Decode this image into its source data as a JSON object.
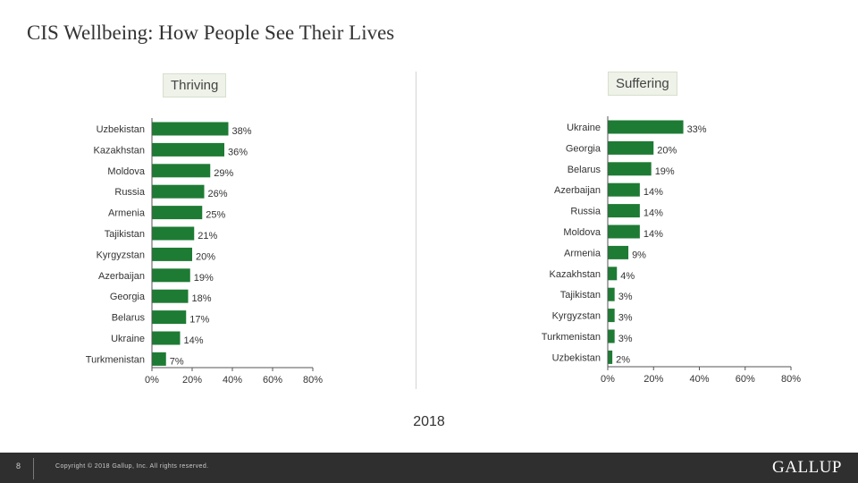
{
  "page": {
    "title": "CIS Wellbeing: How People See Their Lives",
    "year": "2018",
    "page_number": "8",
    "copyright": "Copyright © 2018 Gallup, Inc. All rights reserved.",
    "logo": "GALLUP",
    "accent_color": "#1e7b34"
  },
  "chart_data": [
    {
      "type": "bar",
      "orientation": "horizontal",
      "title": "Thriving",
      "categories": [
        "Uzbekistan",
        "Kazakhstan",
        "Moldova",
        "Russia",
        "Armenia",
        "Tajikistan",
        "Kyrgyzstan",
        "Azerbaijan",
        "Georgia",
        "Belarus",
        "Ukraine",
        "Turkmenistan"
      ],
      "values": [
        38,
        36,
        29,
        26,
        25,
        21,
        20,
        19,
        18,
        17,
        14,
        7
      ],
      "value_labels": [
        "38%",
        "36%",
        "29%",
        "26%",
        "25%",
        "21%",
        "20%",
        "19%",
        "18%",
        "17%",
        "14%",
        "7%"
      ],
      "xlim": [
        0,
        80
      ],
      "xticks": [
        "0%",
        "20%",
        "40%",
        "60%",
        "80%"
      ],
      "color": "#1e7b34"
    },
    {
      "type": "bar",
      "orientation": "horizontal",
      "title": "Suffering",
      "categories": [
        "Ukraine",
        "Georgia",
        "Belarus",
        "Azerbaijan",
        "Russia",
        "Moldova",
        "Armenia",
        "Kazakhstan",
        "Tajikistan",
        "Kyrgyzstan",
        "Turkmenistan",
        "Uzbekistan"
      ],
      "values": [
        33,
        20,
        19,
        14,
        14,
        14,
        9,
        4,
        3,
        3,
        3,
        2
      ],
      "value_labels": [
        "33%",
        "20%",
        "19%",
        "14%",
        "14%",
        "14%",
        "9%",
        "4%",
        "3%",
        "3%",
        "3%",
        "2%"
      ],
      "xlim": [
        0,
        80
      ],
      "xticks": [
        "0%",
        "20%",
        "40%",
        "60%",
        "80%"
      ],
      "color": "#1e7b34"
    }
  ]
}
